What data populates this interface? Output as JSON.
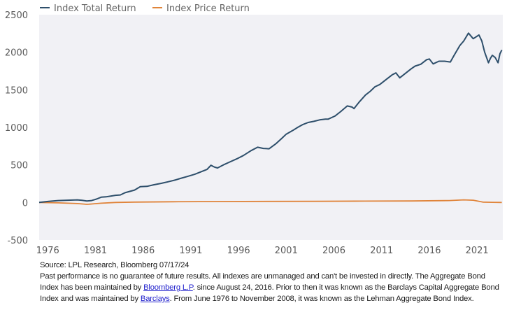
{
  "chart_data": {
    "type": "line",
    "title": "",
    "xlabel": "",
    "ylabel": "",
    "ylim": [
      -500,
      2500
    ],
    "xlim": [
      1976,
      2024.6
    ],
    "yticks": [
      "2500",
      "2000",
      "1500",
      "1000",
      "500",
      "0",
      "-500"
    ],
    "ytick_values": [
      2500,
      2000,
      1500,
      1000,
      500,
      0,
      -500
    ],
    "xticks": [
      "1976",
      "1981",
      "1986",
      "1991",
      "1996",
      "2001",
      "2006",
      "2011",
      "2016",
      "2021"
    ],
    "xtick_values": [
      1976.9,
      1981.9,
      1986.9,
      1991.9,
      1996.9,
      2001.9,
      2006.9,
      2011.9,
      2016.9,
      2021.9
    ],
    "grid": false,
    "legend_position": "top-left",
    "colors": {
      "total": "#2e4f6b",
      "price": "#e0843a",
      "plot_bg": "#f1f1f5"
    },
    "series": [
      {
        "name": "Index Total Return",
        "x": [
          1976.0,
          1977,
          1978,
          1979,
          1980,
          1980.5,
          1981.0,
          1981.5,
          1982,
          1982.5,
          1983,
          1984,
          1984.5,
          1985,
          1986,
          1986.6,
          1987.3,
          1988,
          1988.8,
          1989.5,
          1990.3,
          1990.8,
          1991.5,
          1992.3,
          1993,
          1993.6,
          1994,
          1994.4,
          1994.7,
          1995.3,
          1996,
          1996.7,
          1997.4,
          1998.2,
          1998.9,
          1999.5,
          2000.1,
          2000.8,
          2001.4,
          2001.9,
          2002.6,
          2003.1,
          2003.6,
          2004.2,
          2004.8,
          2005.4,
          2006.0,
          2006.3,
          2007,
          2007.6,
          2008.3,
          2008.8,
          2009.0,
          2009.5,
          2010.2,
          2010.7,
          2011.2,
          2011.7,
          2012.4,
          2013.0,
          2013.4,
          2013.8,
          2014.4,
          2015.0,
          2015.4,
          2016.0,
          2016.6,
          2016.9,
          2017.3,
          2017.9,
          2018.5,
          2019.1,
          2019.5,
          2020.1,
          2020.5,
          2021.0,
          2021.5,
          2022.1,
          2022.4,
          2022.7,
          2023.1,
          2023.3,
          2023.5,
          2023.8,
          2024.1,
          2024.3,
          2024.5
        ],
        "values": [
          0,
          15,
          25,
          30,
          35,
          28,
          20,
          25,
          45,
          70,
          75,
          95,
          100,
          130,
          165,
          210,
          215,
          235,
          255,
          275,
          300,
          320,
          345,
          375,
          410,
          440,
          495,
          470,
          460,
          500,
          540,
          580,
          625,
          690,
          735,
          720,
          715,
          780,
          850,
          910,
          960,
          1000,
          1035,
          1065,
          1080,
          1100,
          1110,
          1110,
          1150,
          1210,
          1285,
          1270,
          1250,
          1330,
          1430,
          1480,
          1540,
          1570,
          1640,
          1700,
          1725,
          1660,
          1720,
          1780,
          1815,
          1840,
          1900,
          1910,
          1845,
          1880,
          1880,
          1870,
          1960,
          2090,
          2150,
          2255,
          2180,
          2230,
          2150,
          2000,
          1860,
          1920,
          1960,
          1930,
          1860,
          1980,
          2030
        ]
      },
      {
        "name": "Index Price Return",
        "x": [
          1976.0,
          1978,
          1980,
          1981.0,
          1981.5,
          1982.5,
          1984,
          1986,
          1990,
          1995,
          2000,
          2005,
          2010,
          2015,
          2019,
          2020.5,
          2021.5,
          2022.5,
          2023.5,
          2024.5
        ],
        "values": [
          0,
          -5,
          -15,
          -25,
          -20,
          -10,
          0,
          5,
          10,
          12,
          14,
          15,
          18,
          20,
          25,
          35,
          30,
          5,
          2,
          0
        ]
      }
    ]
  },
  "notes": {
    "source": "Source: LPL Research, Bloomberg 07/17/24",
    "line1": "Past performance is no guarantee of future results. All indexes are unmanaged and can't be invested in directly. The Aggregate Bond Index has been maintained by ",
    "link1": "Bloomberg L.P",
    "line2": ". since August 24, 2016. Prior to then it was known as the Barclays Capital Aggregate Bond Index and was maintained by ",
    "link2": "Barclays",
    "line3": ". From June 1976 to November 2008, it was known as the Lehman Aggregate Bond Index."
  }
}
